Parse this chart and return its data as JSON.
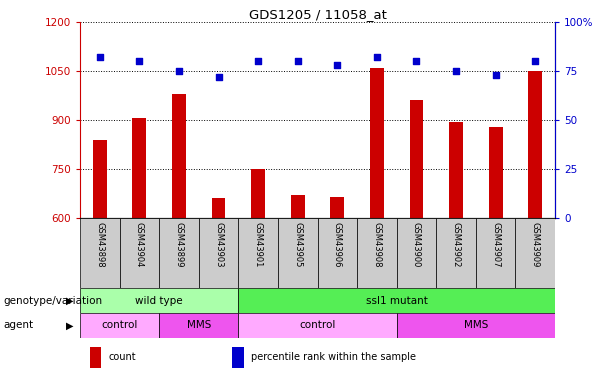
{
  "title": "GDS1205 / 11058_at",
  "samples": [
    "GSM43898",
    "GSM43904",
    "GSM43899",
    "GSM43903",
    "GSM43901",
    "GSM43905",
    "GSM43906",
    "GSM43908",
    "GSM43900",
    "GSM43902",
    "GSM43907",
    "GSM43909"
  ],
  "counts": [
    840,
    905,
    980,
    660,
    750,
    670,
    665,
    1060,
    960,
    893,
    880,
    1050
  ],
  "percentile_ranks": [
    82,
    80,
    75,
    72,
    80,
    80,
    78,
    82,
    80,
    75,
    73,
    80
  ],
  "ylim_left": [
    600,
    1200
  ],
  "ylim_right": [
    0,
    100
  ],
  "yticks_left": [
    600,
    750,
    900,
    1050,
    1200
  ],
  "yticks_right": [
    0,
    25,
    50,
    75,
    100
  ],
  "bar_color": "#cc0000",
  "dot_color": "#0000cc",
  "genotype_row": {
    "label": "genotype/variation",
    "groups": [
      {
        "name": "wild type",
        "start": 0,
        "end": 3,
        "color": "#aaffaa"
      },
      {
        "name": "ssl1 mutant",
        "start": 4,
        "end": 11,
        "color": "#55ee55"
      }
    ]
  },
  "agent_row": {
    "label": "agent",
    "groups": [
      {
        "name": "control",
        "start": 0,
        "end": 1,
        "color": "#ffaaff"
      },
      {
        "name": "MMS",
        "start": 2,
        "end": 3,
        "color": "#ee55ee"
      },
      {
        "name": "control",
        "start": 4,
        "end": 7,
        "color": "#ffaaff"
      },
      {
        "name": "MMS",
        "start": 8,
        "end": 11,
        "color": "#ee55ee"
      }
    ]
  },
  "legend_items": [
    {
      "label": "count",
      "color": "#cc0000"
    },
    {
      "label": "percentile rank within the sample",
      "color": "#0000cc"
    }
  ]
}
